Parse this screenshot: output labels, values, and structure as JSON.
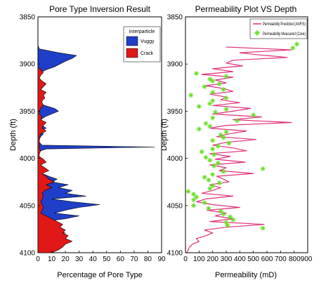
{
  "chart_data": [
    {
      "type": "area",
      "title": "Pore Type Inversion Result",
      "xlabel": "Percentage of Pore Type",
      "ylabel": "Depth (ft)",
      "xlim": [
        0,
        90
      ],
      "ylim": [
        3850,
        4100
      ],
      "y_inverted": true,
      "x_ticks": [
        0,
        10,
        20,
        30,
        40,
        50,
        60,
        70,
        80,
        90
      ],
      "y_ticks": [
        3850,
        3900,
        3950,
        4000,
        4050,
        4100
      ],
      "legend": {
        "position": "top-right",
        "entries": [
          "Interparticle",
          "Vuggy",
          "Crack"
        ]
      },
      "colors": {
        "interparticle": "#ffffff",
        "vuggy": "#1f3fc8",
        "crack": "#e01818"
      },
      "series": [
        {
          "name": "Vuggy",
          "depth": [
            3880,
            3884,
            3888,
            3891,
            3894,
            3897,
            3900,
            3903,
            3906,
            3909,
            3912,
            3915,
            3918,
            3921,
            3924,
            3927,
            3930,
            3933,
            3936,
            3939,
            3941,
            3944,
            3947,
            3950,
            3953,
            3956,
            3959,
            3962,
            3965,
            3968,
            3971,
            3974,
            3977,
            3980,
            3983,
            3986,
            3988,
            3990,
            3992,
            3995,
            3998,
            4001,
            4004,
            4007,
            4010,
            4013,
            4016,
            4019,
            4022,
            4025,
            4028,
            4031,
            4034,
            4037,
            4040,
            4043,
            4046,
            4049,
            4052,
            4055,
            4058,
            4061,
            4064,
            4067,
            4070,
            4073,
            4076,
            4079,
            4082,
            4085,
            4088,
            4091,
            4094,
            4097,
            4100
          ],
          "values": [
            0,
            1,
            15,
            28,
            25,
            20,
            16,
            12,
            6,
            2,
            0,
            0,
            0,
            0,
            0,
            0,
            0,
            0,
            0,
            0,
            0,
            5,
            12,
            15,
            10,
            5,
            2,
            5,
            3,
            6,
            1,
            4,
            2,
            1,
            1,
            3,
            85,
            6,
            2,
            1,
            0,
            0,
            2,
            1,
            5,
            3,
            3,
            8,
            14,
            10,
            22,
            15,
            25,
            20,
            35,
            10,
            25,
            45,
            30,
            20,
            12,
            30,
            20,
            5,
            8,
            5,
            3,
            20,
            0,
            0,
            0,
            0,
            0,
            0,
            0
          ]
        },
        {
          "name": "Crack",
          "depth": [
            3880,
            3884,
            3888,
            3891,
            3894,
            3897,
            3900,
            3903,
            3906,
            3909,
            3912,
            3915,
            3918,
            3921,
            3924,
            3927,
            3930,
            3933,
            3936,
            3939,
            3941,
            3944,
            3947,
            3950,
            3953,
            3956,
            3959,
            3962,
            3965,
            3968,
            3971,
            3974,
            3977,
            3980,
            3983,
            3986,
            3988,
            3990,
            3992,
            3995,
            3998,
            4001,
            4004,
            4007,
            4010,
            4013,
            4016,
            4019,
            4022,
            4025,
            4028,
            4031,
            4034,
            4037,
            4040,
            4043,
            4046,
            4049,
            4052,
            4055,
            4058,
            4061,
            4064,
            4067,
            4070,
            4073,
            4076,
            4079,
            4082,
            4085,
            4088,
            4091,
            4094,
            4097,
            4100
          ],
          "values": [
            0,
            0,
            0,
            0,
            0,
            0,
            0,
            0,
            2,
            4,
            2,
            1,
            3,
            6,
            4,
            2,
            6,
            4,
            5,
            3,
            3,
            4,
            2,
            1,
            1,
            3,
            2,
            6,
            4,
            3,
            6,
            2,
            1,
            1,
            1,
            1,
            1,
            1,
            2,
            1,
            1,
            4,
            6,
            2,
            5,
            8,
            3,
            6,
            8,
            12,
            6,
            10,
            5,
            3,
            4,
            3,
            2,
            3,
            4,
            3,
            2,
            6,
            10,
            14,
            18,
            16,
            20,
            18,
            22,
            20,
            25,
            20,
            18,
            15,
            10
          ]
        }
      ]
    },
    {
      "type": "line",
      "title": "Permeability Plot VS Depth",
      "xlabel": "Permeability (mD)",
      "ylabel": "Depth (ft)",
      "xlim": [
        0,
        900
      ],
      "ylim": [
        3850,
        4100
      ],
      "y_inverted": true,
      "x_ticks": [
        0,
        100,
        200,
        300,
        400,
        500,
        600,
        700,
        800,
        900
      ],
      "x_tick_labels": [
        "0",
        "100",
        "200",
        "300",
        "400",
        "500",
        "600",
        "700",
        "800900"
      ],
      "y_ticks": [
        3850,
        3900,
        3950,
        4000,
        4050,
        4100
      ],
      "legend": {
        "position": "top-right",
        "entries": [
          "Permeability Predicted (ANFIS)",
          "Permeability Measured (Core)"
        ]
      },
      "colors": {
        "predicted": "#e0307a",
        "measured": "#66dd22"
      },
      "series": [
        {
          "name": "Permeability Predicted (ANFIS)",
          "depth": [
            3882,
            3885,
            3888,
            3890,
            3893,
            3896,
            3899,
            3902,
            3905,
            3908,
            3911,
            3914,
            3917,
            3920,
            3923,
            3926,
            3929,
            3932,
            3935,
            3938,
            3941,
            3944,
            3947,
            3950,
            3953,
            3956,
            3959,
            3962,
            3965,
            3968,
            3971,
            3974,
            3977,
            3980,
            3983,
            3986,
            3989,
            3992,
            3995,
            3998,
            4001,
            4004,
            4007,
            4010,
            4013,
            4016,
            4019,
            4022,
            4025,
            4028,
            4031,
            4034,
            4037,
            4040,
            4043,
            4046,
            4049,
            4052,
            4055,
            4058,
            4061,
            4064,
            4067,
            4070,
            4073,
            4076,
            4079,
            4082,
            4085,
            4088,
            4091,
            4094,
            4097,
            4100
          ],
          "values": [
            300,
            780,
            400,
            520,
            750,
            350,
            300,
            420,
            200,
            350,
            120,
            350,
            220,
            300,
            150,
            280,
            350,
            180,
            300,
            260,
            400,
            200,
            480,
            350,
            200,
            560,
            350,
            780,
            300,
            180,
            450,
            320,
            230,
            520,
            300,
            200,
            350,
            450,
            180,
            330,
            220,
            440,
            180,
            300,
            250,
            500,
            230,
            280,
            320,
            180,
            260,
            200,
            120,
            350,
            150,
            80,
            200,
            400,
            160,
            300,
            220,
            350,
            180,
            580,
            300,
            140,
            200,
            150,
            80,
            100,
            50,
            30,
            20,
            10
          ]
        },
        {
          "name": "Permeability Measured (Core)",
          "depth": [
            3879,
            3883,
            3910,
            3913,
            3916,
            3918,
            3921,
            3924,
            3927,
            3930,
            3933,
            3936,
            3939,
            3942,
            3945,
            3948,
            3951,
            3954,
            3957,
            3960,
            3963,
            3966,
            3969,
            3972,
            3975,
            3978,
            3981,
            3984,
            3987,
            3990,
            3993,
            3996,
            3999,
            4002,
            4005,
            4008,
            4011,
            4014,
            4017,
            4020,
            4023,
            4026,
            4029,
            4032,
            4035,
            4038,
            4041,
            4044,
            4047,
            4050,
            4053,
            4056,
            4059,
            4062,
            4065,
            4068,
            4071,
            4074
          ],
          "values": [
            820,
            790,
            80,
            300,
            180,
            200,
            250,
            140,
            280,
            200,
            40,
            300,
            200,
            180,
            100,
            300,
            220,
            500,
            200,
            380,
            150,
            180,
            100,
            300,
            260,
            280,
            200,
            320,
            240,
            200,
            120,
            210,
            150,
            180,
            240,
            210,
            570,
            280,
            200,
            140,
            170,
            250,
            200,
            180,
            20,
            60,
            80,
            60,
            140,
            60,
            170,
            260,
            280,
            330,
            350,
            300,
            310,
            570
          ]
        }
      ]
    }
  ]
}
